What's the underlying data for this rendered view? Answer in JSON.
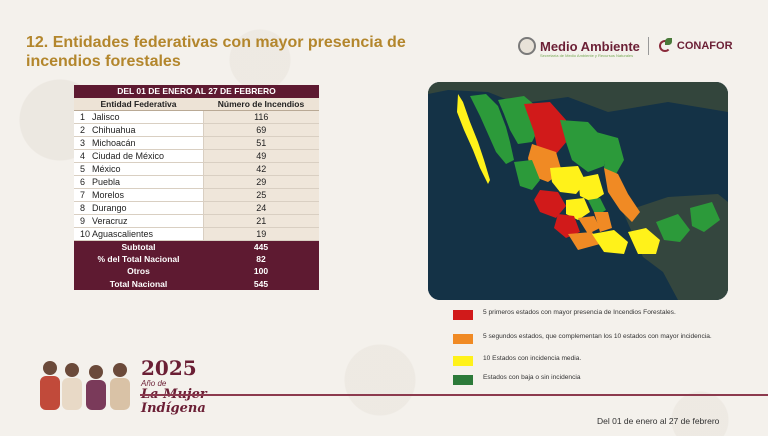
{
  "header": {
    "title": "12. Entidades federativas con mayor presencia de incendios forestales",
    "logo_main": "Medio Ambiente",
    "logo_main_sub": "Secretaría de Medio Ambiente y Recursos Naturales",
    "logo_secondary": "CONAFOR"
  },
  "table": {
    "period": "DEL 01 DE ENERO AL 27 DE FEBRERO",
    "col_entity": "Entidad Federativa",
    "col_count": "Número de Incendios",
    "rows": [
      {
        "rank": "1",
        "name": "Jalisco",
        "value": "116"
      },
      {
        "rank": "2",
        "name": "Chihuahua",
        "value": "69"
      },
      {
        "rank": "3",
        "name": "Michoacán",
        "value": "51"
      },
      {
        "rank": "4",
        "name": "Ciudad de México",
        "value": "49"
      },
      {
        "rank": "5",
        "name": "México",
        "value": "42"
      },
      {
        "rank": "6",
        "name": "Puebla",
        "value": "29"
      },
      {
        "rank": "7",
        "name": "Morelos",
        "value": "25"
      },
      {
        "rank": "8",
        "name": "Durango",
        "value": "24"
      },
      {
        "rank": "9",
        "name": "Veracruz",
        "value": "21"
      },
      {
        "rank": "10",
        "name": "Aguascalientes",
        "value": "19"
      }
    ],
    "summary": [
      {
        "label": "Subtotal",
        "value": "445"
      },
      {
        "label": "% del Total Nacional",
        "value": "82"
      },
      {
        "label": "Otros",
        "value": "100"
      },
      {
        "label": "Total Nacional",
        "value": "545"
      }
    ]
  },
  "legend": [
    {
      "color": "#d11a1a",
      "text": "5 primeros estados con mayor presencia de Incendios Forestales."
    },
    {
      "color": "#f08a24",
      "text": "5 segundos estados, que complementan los 10 estados con mayor incidencia."
    },
    {
      "color": "#fff21a",
      "text": "10 Estados con incidencia media."
    },
    {
      "color": "#2c7a3a",
      "text": "Estados con baja o sin incidencia"
    }
  ],
  "footer": {
    "date": "Del 01 de enero al 27 de febrero",
    "year": "2025",
    "ano": "Año de",
    "mujer": "La Mujer",
    "indigena": "Indígena"
  }
}
